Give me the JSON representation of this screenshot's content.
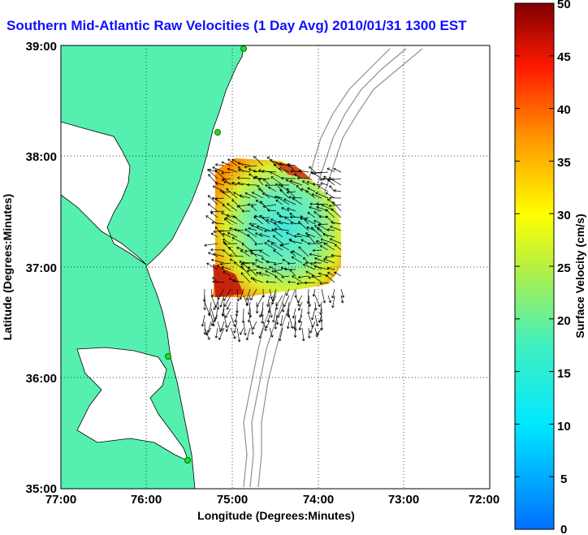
{
  "title": "Southern Mid-Atlantic Raw Velocities (1 Day Avg) 2010/01/31 1300 EST",
  "x_axis": {
    "label": "Longitude (Degrees:Minutes)",
    "ticks": [
      "77:00",
      "76:00",
      "75:00",
      "74:00",
      "73:00",
      "72:00"
    ]
  },
  "y_axis": {
    "label": "Latitude (Degrees:Minutes)",
    "ticks": [
      "39:00",
      "38:00",
      "37:00",
      "36:00",
      "35:00"
    ]
  },
  "colorbar": {
    "label": "Surface Velocity (cm/s)",
    "ticks": [
      "50",
      "45",
      "40",
      "35",
      "30",
      "25",
      "20",
      "15",
      "10",
      "5",
      "0"
    ],
    "range": [
      0,
      50
    ]
  },
  "map": {
    "land_color": "#55f0b0",
    "water_color": "#ffffff",
    "bathymetry_color": "#909090",
    "station_color": "#22dd22",
    "grid": true
  }
}
